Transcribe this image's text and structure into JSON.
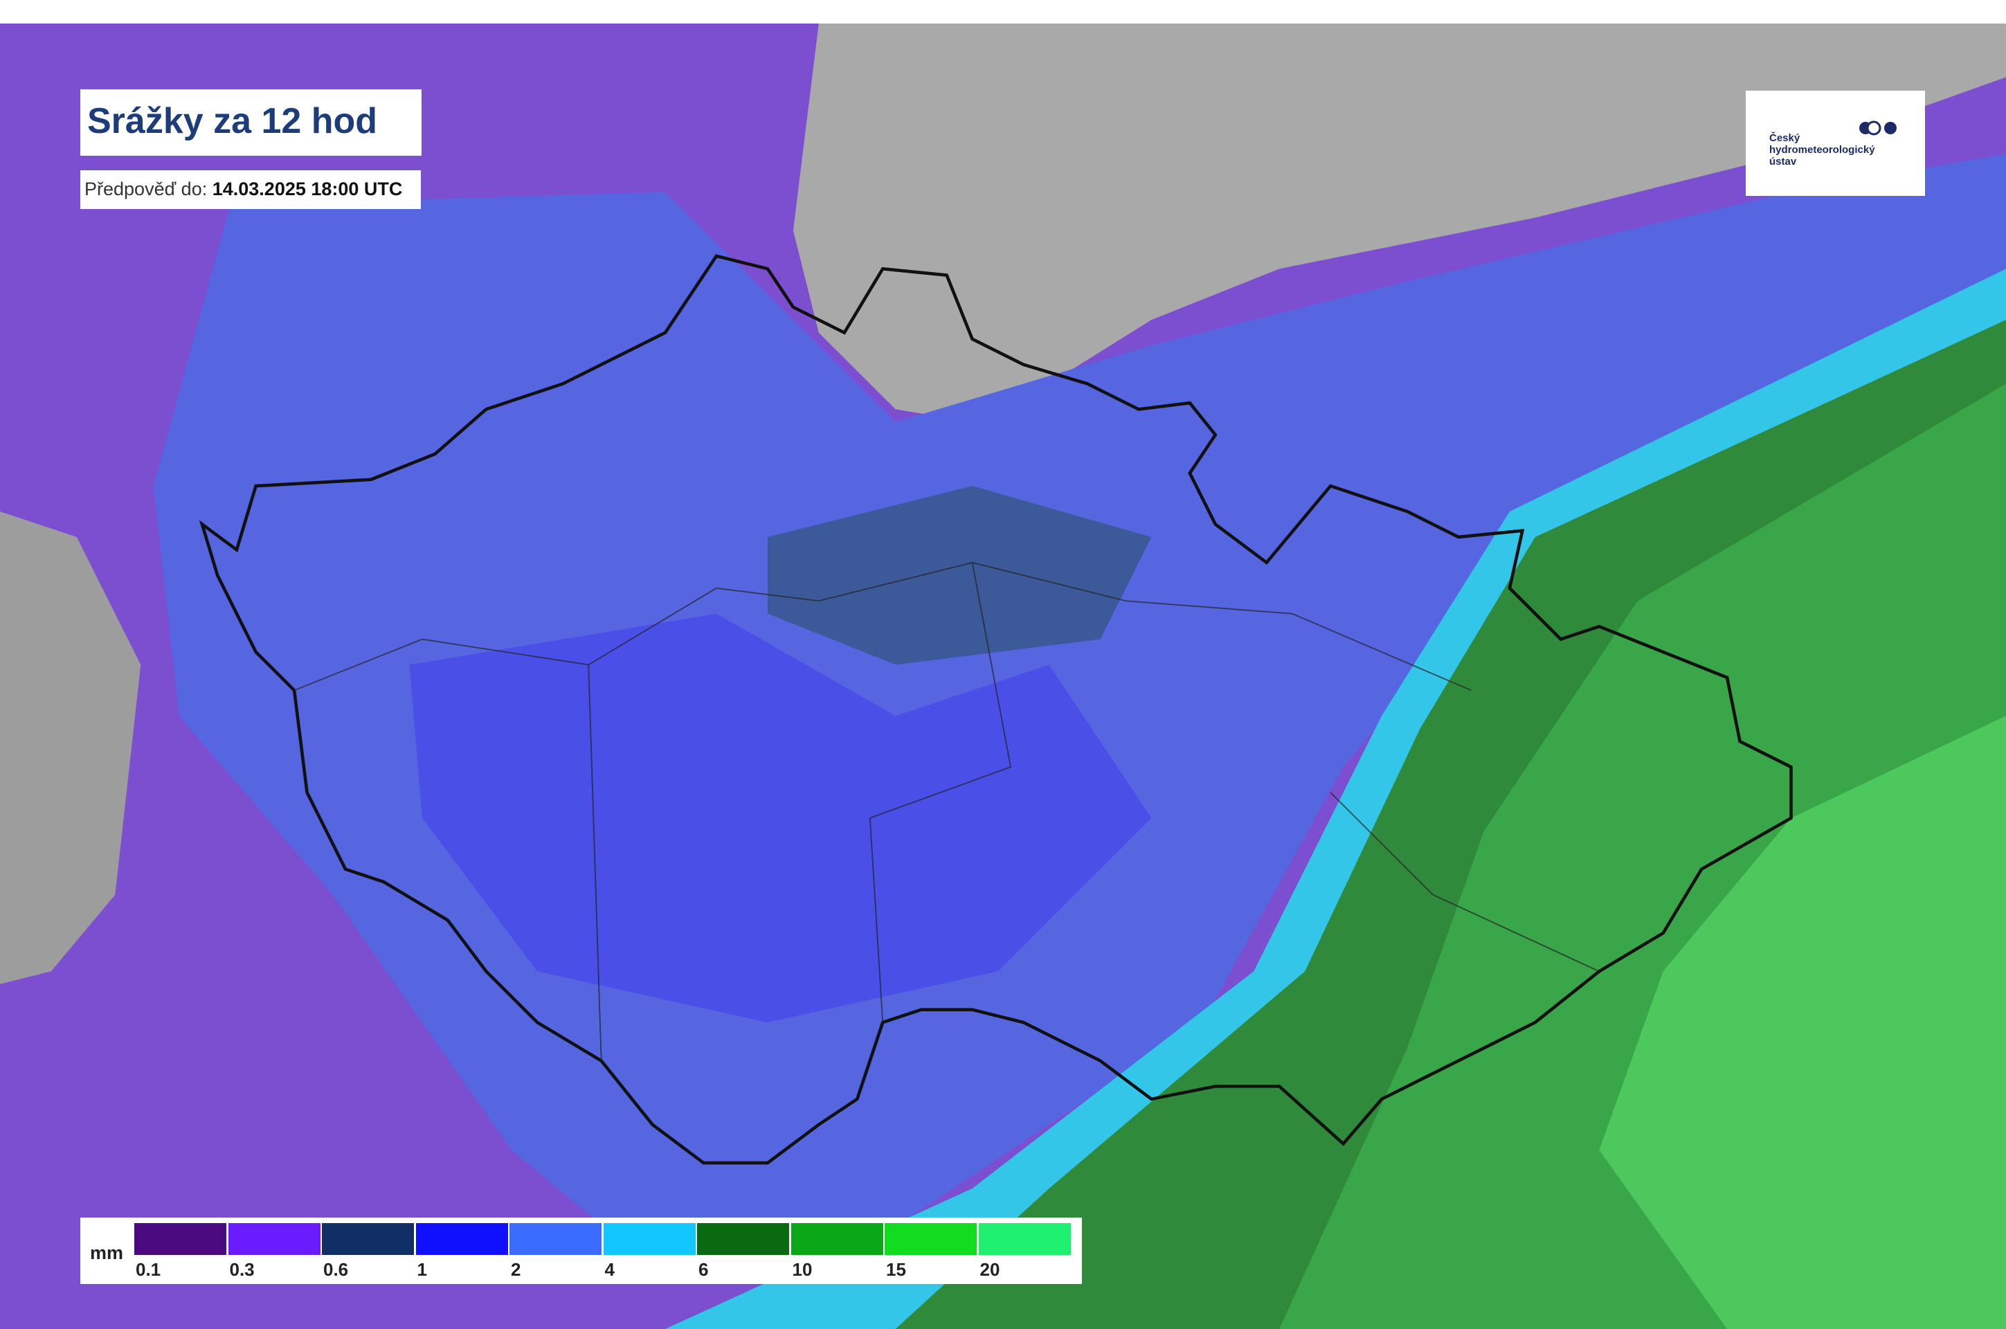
{
  "header": {
    "title": "Srážky za 12 hod",
    "forecast_label": "Předpověď do:",
    "forecast_time": "14.03.2025 18:00 UTC"
  },
  "logo": {
    "lines": [
      "Český",
      "hydrometeorologický",
      "ústav"
    ]
  },
  "legend": {
    "unit": "mm",
    "items": [
      {
        "color": "#4b0a80",
        "label": 0.1
      },
      {
        "color": "#6a1cff",
        "label": 0.3
      },
      {
        "color": "#0f2f66",
        "label": 0.6
      },
      {
        "color": "#1010ff",
        "label": 1
      },
      {
        "color": "#3a6cff",
        "label": 2
      },
      {
        "color": "#12c6ff",
        "label": 4
      },
      {
        "color": "#0a6a12",
        "label": 6
      },
      {
        "color": "#0aa818",
        "label": 10
      },
      {
        "color": "#12dc20",
        "label": 15
      },
      {
        "color": "#20f070",
        "label": 20
      }
    ]
  }
}
